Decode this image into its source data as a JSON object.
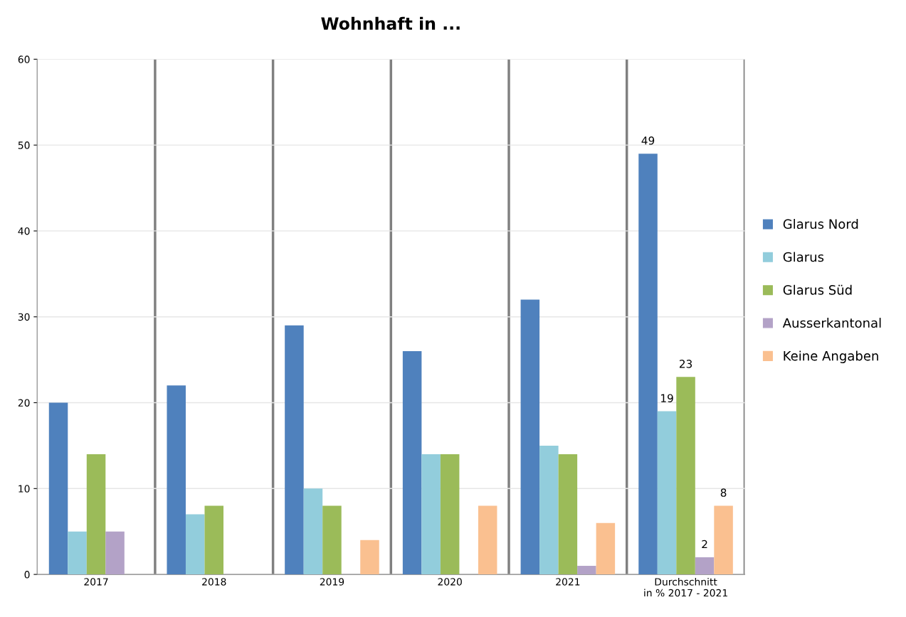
{
  "chart_data": {
    "type": "bar",
    "title": "Wohnhaft in ...",
    "categories": [
      "2017",
      "2018",
      "2019",
      "2020",
      "2021",
      "Durchschnitt\nin % 2017 - 2021"
    ],
    "series": [
      {
        "name": "Glarus Nord",
        "color": "#4f81bd",
        "values": [
          20,
          22,
          29,
          26,
          32,
          49
        ],
        "value_labels": [
          null,
          null,
          null,
          null,
          null,
          "49"
        ]
      },
      {
        "name": "Glarus",
        "color": "#92cddc",
        "values": [
          5,
          7,
          10,
          14,
          15,
          19
        ],
        "value_labels": [
          null,
          null,
          null,
          null,
          null,
          "19"
        ]
      },
      {
        "name": "Glarus Süd",
        "color": "#9bbb59",
        "values": [
          14,
          8,
          8,
          14,
          14,
          23
        ],
        "value_labels": [
          null,
          null,
          null,
          null,
          null,
          "23"
        ]
      },
      {
        "name": "Ausserkantonal",
        "color": "#b3a2c7",
        "values": [
          5,
          null,
          null,
          null,
          1,
          2
        ],
        "value_labels": [
          null,
          null,
          null,
          null,
          null,
          "2"
        ]
      },
      {
        "name": "Keine Angaben",
        "color": "#fac090",
        "values": [
          null,
          null,
          4,
          8,
          6,
          8
        ],
        "value_labels": [
          null,
          null,
          null,
          null,
          null,
          "8"
        ]
      }
    ],
    "ylim": [
      0,
      60
    ],
    "yticks": [
      0,
      10,
      20,
      30,
      40,
      50,
      60
    ],
    "grid": true,
    "legend": "right"
  }
}
